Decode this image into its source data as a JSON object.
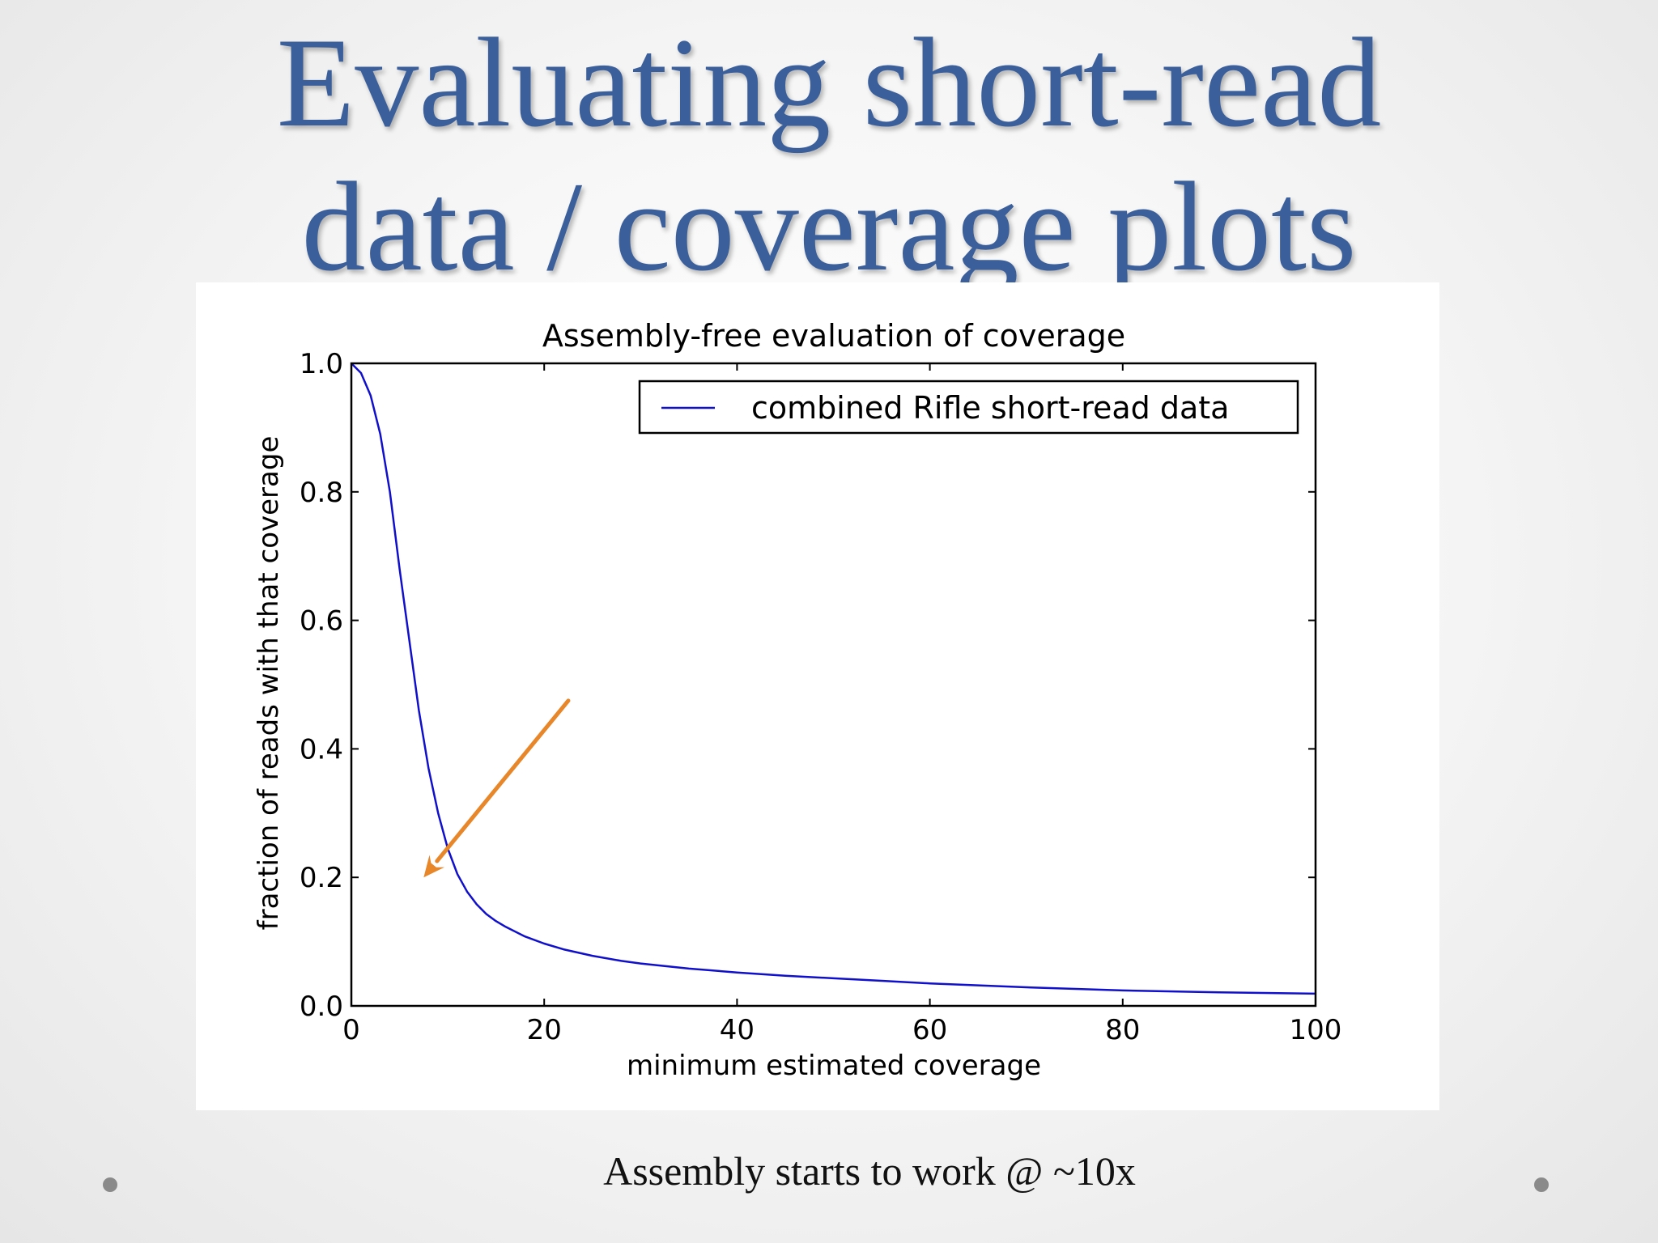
{
  "slide": {
    "title_line1": "Evaluating short-read",
    "title_line2": "data / coverage plots",
    "caption": "Assembly starts to work @ ~10x"
  },
  "colors": {
    "title": "#3b5f9a",
    "series": "#1010cc",
    "arrow": "#e8862a"
  },
  "chart_data": {
    "type": "line",
    "title": "Assembly-free evaluation of coverage",
    "xlabel": "minimum estimated coverage",
    "ylabel": "fraction of reads with that coverage",
    "xlim": [
      0,
      100
    ],
    "ylim": [
      0,
      1.0
    ],
    "xticks": [
      0,
      20,
      40,
      60,
      80,
      100
    ],
    "yticks": [
      0.0,
      0.2,
      0.4,
      0.6,
      0.8,
      1.0
    ],
    "ytick_labels": [
      "0.0",
      "0.2",
      "0.4",
      "0.6",
      "0.8",
      "1.0"
    ],
    "grid": false,
    "legend": "top-right",
    "series": [
      {
        "name": "combined Rifle short-read data",
        "x": [
          0,
          1,
          2,
          3,
          4,
          5,
          6,
          7,
          8,
          9,
          10,
          11,
          12,
          13,
          14,
          15,
          16,
          18,
          20,
          22,
          25,
          28,
          30,
          35,
          40,
          45,
          50,
          55,
          60,
          70,
          80,
          90,
          100
        ],
        "y": [
          1.0,
          0.985,
          0.95,
          0.89,
          0.8,
          0.68,
          0.57,
          0.46,
          0.37,
          0.3,
          0.245,
          0.205,
          0.178,
          0.158,
          0.143,
          0.132,
          0.123,
          0.108,
          0.097,
          0.088,
          0.078,
          0.07,
          0.066,
          0.058,
          0.052,
          0.047,
          0.043,
          0.039,
          0.035,
          0.029,
          0.024,
          0.021,
          0.019
        ]
      }
    ],
    "annotation_arrow": {
      "from": [
        22.5,
        0.475
      ],
      "to": [
        7.5,
        0.2
      ]
    }
  }
}
